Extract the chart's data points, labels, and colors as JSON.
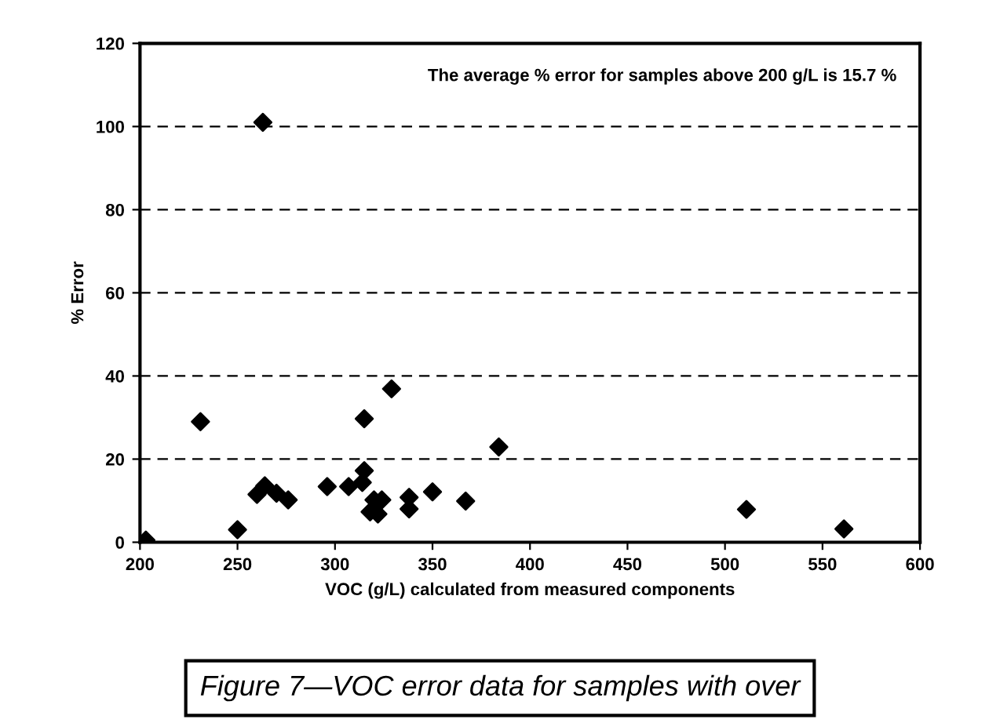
{
  "chart_data": {
    "type": "scatter",
    "xlabel": "VOC (g/L) calculated from measured components",
    "ylabel": "% Error",
    "annotations": [
      "The average % error for samples above 200 g/L is 15.7 %",
      "Figure 7—VOC error data for samples with over"
    ],
    "x": [
      203,
      250,
      231,
      260,
      263,
      264,
      270,
      276,
      296,
      307,
      315,
      314,
      315,
      318,
      320,
      322,
      324,
      329,
      338,
      338,
      350,
      367,
      384,
      511,
      561
    ],
    "series": [
      {
        "color": "#000000",
        "values": [
          0.5,
          3,
          29,
          11.5,
          101,
          13.6,
          11.8,
          10.2,
          13.4,
          13.4,
          29.7,
          14.4,
          17.2,
          7.3,
          10.2,
          6.8,
          10.2,
          36.9,
          10.8,
          8.0,
          12.1,
          9.9,
          22.9,
          7.9,
          3.2
        ]
      }
    ],
    "xlim": [
      200,
      600
    ],
    "ylim": [
      0,
      120
    ],
    "xticks": [
      200,
      250,
      300,
      350,
      400,
      450,
      500,
      550,
      600
    ],
    "yticks": [
      0,
      20,
      40,
      60,
      80,
      100,
      120
    ],
    "grid": "y",
    "marker": "diamond",
    "legend": false
  }
}
